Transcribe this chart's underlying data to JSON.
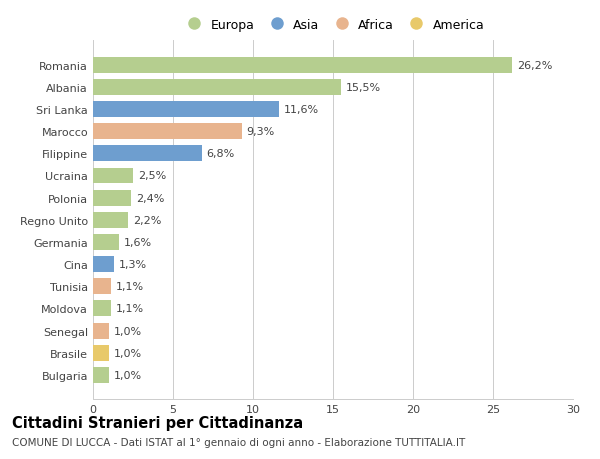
{
  "categories": [
    "Romania",
    "Albania",
    "Sri Lanka",
    "Marocco",
    "Filippine",
    "Ucraina",
    "Polonia",
    "Regno Unito",
    "Germania",
    "Cina",
    "Tunisia",
    "Moldova",
    "Senegal",
    "Brasile",
    "Bulgaria"
  ],
  "values": [
    26.2,
    15.5,
    11.6,
    9.3,
    6.8,
    2.5,
    2.4,
    2.2,
    1.6,
    1.3,
    1.1,
    1.1,
    1.0,
    1.0,
    1.0
  ],
  "labels": [
    "26,2%",
    "15,5%",
    "11,6%",
    "9,3%",
    "6,8%",
    "2,5%",
    "2,4%",
    "2,2%",
    "1,6%",
    "1,3%",
    "1,1%",
    "1,1%",
    "1,0%",
    "1,0%",
    "1,0%"
  ],
  "colors": [
    "#b5ce8f",
    "#b5ce8f",
    "#6e9ecf",
    "#e8b48e",
    "#6e9ecf",
    "#b5ce8f",
    "#b5ce8f",
    "#b5ce8f",
    "#b5ce8f",
    "#6e9ecf",
    "#e8b48e",
    "#b5ce8f",
    "#e8b48e",
    "#e8c96a",
    "#b5ce8f"
  ],
  "continent_labels": [
    "Europa",
    "Asia",
    "Africa",
    "America"
  ],
  "continent_colors": [
    "#b5ce8f",
    "#6e9ecf",
    "#e8b48e",
    "#e8c96a"
  ],
  "xlim": [
    0,
    30
  ],
  "xticks": [
    0,
    5,
    10,
    15,
    20,
    25,
    30
  ],
  "title": "Cittadini Stranieri per Cittadinanza",
  "subtitle": "COMUNE DI LUCCA - Dati ISTAT al 1° gennaio di ogni anno - Elaborazione TUTTITALIA.IT",
  "bg_color": "#ffffff",
  "grid_color": "#cccccc",
  "bar_height": 0.72,
  "label_fontsize": 8,
  "title_fontsize": 10.5,
  "subtitle_fontsize": 7.5,
  "tick_fontsize": 8,
  "legend_fontsize": 9
}
